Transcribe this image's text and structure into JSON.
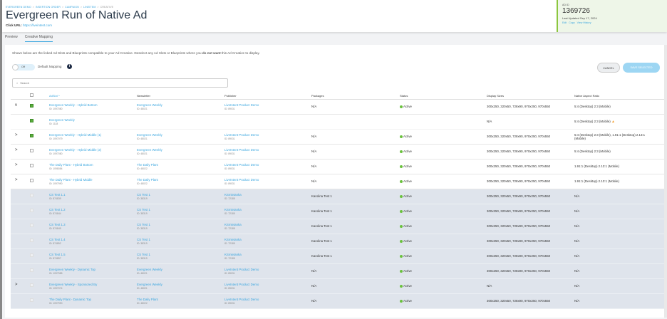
{
  "breadcrumbs": [
    "EVERGREEN DEMO",
    "INSERTION ORDER",
    "CAMPAIGN",
    "LINEITEM",
    "CREATIVE"
  ],
  "title": "Evergreen Run of Native Ad",
  "click_url_label": "Click URL:",
  "click_url": "https://liveintent.com",
  "ad_id_label": "AD ID",
  "ad_id": "1369726",
  "last_updated": "Last Updated Sep 17, 2024",
  "id_links": [
    "Edit",
    "Copy",
    "View History"
  ],
  "tabs": [
    {
      "label": "Preview",
      "active": false
    },
    {
      "label": "Creative Mapping",
      "active": true
    }
  ],
  "intro_pre": "Shown below are the linked Ad Slots and Blueprints compatible to your Ad Creative. Deselect any Ad Slots or Blueprints where you ",
  "intro_bold": "do not want",
  "intro_post": " this Ad Creative to display.",
  "toggle": {
    "label": "Off",
    "on": false
  },
  "default_mapping_label": "Default Mapping",
  "cancel_label": "CANCEL",
  "save_label": "SAVE SELECTED",
  "search_placeholder": "Search",
  "columns": [
    "AdSlot",
    "Newsletter",
    "Publisher",
    "Packages",
    "Status",
    "Display Sizes",
    "Native Aspect Ratio"
  ],
  "sort_indicator": "^",
  "colors": {
    "accent": "#3aa6df",
    "active": "#6ac13d",
    "checked": "#5aad3c",
    "id_panel": "#eef6e8"
  },
  "rows": [
    {
      "chev": "v",
      "checked": true,
      "grey": false,
      "sub": false,
      "adslot": "Evergreen Weekly - Hybrid Bottom",
      "adslot_id": "ID: 1097080",
      "newsletter": "Evergreen Weekly",
      "newsletter_id": "ID: 48021",
      "publisher": "LiveIntent Product Demo",
      "publisher_id": "ID: 89031",
      "packages": "N/A",
      "status": "Active",
      "sizes": "300x250, 320x50, 728x90, 970x250, 970x550",
      "ratio": "5:4 (Desktop) 2:3 (Mobile)",
      "warn": false
    },
    {
      "chev": "",
      "checked": true,
      "grey": false,
      "sub": true,
      "adslot": "Evergreen Weekly",
      "adslot_id": "ID: 1118",
      "newsletter": "",
      "newsletter_id": "",
      "publisher": "",
      "publisher_id": "",
      "packages": "",
      "status": "",
      "sizes": "N/A",
      "ratio": "5:4 (Desktop) 2:3 (Mobile)",
      "warn": true
    },
    {
      "chev": ">",
      "checked": true,
      "grey": false,
      "sub": false,
      "adslot": "Evergreen Weekly - Hybrid Middle (1)",
      "adslot_id": "ID: 1097079",
      "newsletter": "Evergreen Weekly",
      "newsletter_id": "ID: 48021",
      "publisher": "LiveIntent Product Demo",
      "publisher_id": "ID: 89031",
      "packages": "N/A",
      "status": "Active",
      "sizes": "300x250, 320x50, 728x90, 970x250, 970x550",
      "ratio": "5:4 (Desktop) 2:3 (Mobile), 1.91:1 (Desktop) 2.13:1 (Mobile)",
      "warn": false
    },
    {
      "chev": ">",
      "checked": false,
      "grey": false,
      "sub": false,
      "adslot": "Evergreen Weekly - Hybrid Middle (2)",
      "adslot_id": "ID: 1097080",
      "newsletter": "Evergreen Weekly",
      "newsletter_id": "ID: 48021",
      "publisher": "LiveIntent Product Demo",
      "publisher_id": "ID: 89031",
      "packages": "N/A",
      "status": "Active",
      "sizes": "300x250, 320x50, 728x90, 970x250, 970x550",
      "ratio": "5:4 (Desktop) 2:3 (Mobile)",
      "warn": false
    },
    {
      "chev": ">",
      "checked": false,
      "grey": false,
      "sub": false,
      "adslot": "The Daily Plant - Hybrid Bottom",
      "adslot_id": "ID: 1098084",
      "newsletter": "The Daily Plant",
      "newsletter_id": "ID: 48022",
      "publisher": "LiveIntent Product Demo",
      "publisher_id": "ID: 89031",
      "packages": "N/A",
      "status": "Active",
      "sizes": "300x250, 320x50, 728x90, 970x250, 970x550",
      "ratio": "1.91:1 (Desktop) 2.13:1 (Mobile)",
      "warn": false
    },
    {
      "chev": ">",
      "checked": false,
      "grey": false,
      "sub": false,
      "adslot": "The Daily Plant - Hybrid Middle",
      "adslot_id": "ID: 1097990",
      "newsletter": "The Daily Plant",
      "newsletter_id": "ID: 48022",
      "publisher": "LiveIntent Product Demo",
      "publisher_id": "ID: 89031",
      "packages": "N/A",
      "status": "Active",
      "sizes": "300x250, 320x50, 728x90, 970x250, 970x550",
      "ratio": "1.91:1 (Desktop) 2.13:1 (Mobile)",
      "warn": false
    },
    {
      "chev": "",
      "checked": false,
      "grey": true,
      "sub": false,
      "adslot": "CS Test 1.1",
      "adslot_id": "ID: 874839",
      "newsletter": "CS Test 1",
      "newsletter_id": "ID: 38319",
      "publisher": "KSmietanka",
      "publisher_id": "ID: 72185",
      "packages": "Karolina Test 1",
      "status": "Active",
      "sizes": "300x250, 320x50, 728x90, 970x250, 970x550",
      "ratio": "N/A",
      "warn": false
    },
    {
      "chev": "",
      "checked": false,
      "grey": true,
      "sub": false,
      "adslot": "CS Test 1.2",
      "adslot_id": "ID: 874844",
      "newsletter": "CS Test 1",
      "newsletter_id": "ID: 38319",
      "publisher": "KSmietanka",
      "publisher_id": "ID: 72185",
      "packages": "Karolina Test 1",
      "status": "Active",
      "sizes": "300x250, 320x50, 728x90, 970x250, 970x550",
      "ratio": "N/A",
      "warn": false
    },
    {
      "chev": "",
      "checked": false,
      "grey": true,
      "sub": false,
      "adslot": "CS Test 1.3",
      "adslot_id": "ID: 874849",
      "newsletter": "CS Test 1",
      "newsletter_id": "ID: 38319",
      "publisher": "KSmietanka",
      "publisher_id": "ID: 72185",
      "packages": "Karolina Test 1",
      "status": "Active",
      "sizes": "300x250, 320x50, 728x90, 970x250, 970x550",
      "ratio": "N/A",
      "warn": false
    },
    {
      "chev": "",
      "checked": false,
      "grey": true,
      "sub": false,
      "adslot": "CS Test 1.4",
      "adslot_id": "ID: 874852",
      "newsletter": "CS Test 1",
      "newsletter_id": "ID: 38319",
      "publisher": "KSmietanka",
      "publisher_id": "ID: 72185",
      "packages": "Karolina Test 1",
      "status": "Active",
      "sizes": "300x250, 320x50, 728x90, 970x250, 970x550",
      "ratio": "N/A",
      "warn": false
    },
    {
      "chev": "",
      "checked": false,
      "grey": true,
      "sub": false,
      "adslot": "CS Test 1.5",
      "adslot_id": "ID: 874857",
      "newsletter": "CS Test 1",
      "newsletter_id": "ID: 38319",
      "publisher": "KSmietanka",
      "publisher_id": "ID: 72185",
      "packages": "Karolina Test 1",
      "status": "Active",
      "sizes": "300x250, 320x50, 728x90, 970x250, 970x550",
      "ratio": "N/A",
      "warn": false
    },
    {
      "chev": "",
      "checked": false,
      "grey": true,
      "sub": false,
      "adslot": "Evergreen Weekly - Dynamic Top",
      "adslot_id": "ID: 1097985",
      "newsletter": "Evergreen Weekly",
      "newsletter_id": "ID: 48021",
      "publisher": "LiveIntent Product Demo",
      "publisher_id": "ID: 89031",
      "packages": "N/A",
      "status": "Active",
      "sizes": "300x250, 320x50, 728x90, 970x250, 970x550",
      "ratio": "N/A",
      "warn": false
    },
    {
      "chev": ">",
      "checked": false,
      "grey": true,
      "sub": false,
      "adslot": "Evergreen Weekly - Sponsored By",
      "adslot_id": "ID: 1097074",
      "newsletter": "Evergreen Weekly",
      "newsletter_id": "ID: 48021",
      "publisher": "LiveIntent Product Demo",
      "publisher_id": "ID: 89031",
      "packages": "N/A",
      "status": "Active",
      "sizes": "N/A",
      "ratio": "N/A",
      "warn": false
    },
    {
      "chev": "",
      "checked": false,
      "grey": true,
      "sub": false,
      "adslot": "The Daily Plant - Dynamic Top",
      "adslot_id": "ID: 1097990",
      "newsletter": "The Daily Plant",
      "newsletter_id": "ID: 48022",
      "publisher": "LiveIntent Product Demo",
      "publisher_id": "ID: 89031",
      "packages": "N/A",
      "status": "Active",
      "sizes": "300x250, 320x50, 728x90, 970x250, 970x550",
      "ratio": "N/A",
      "warn": false
    }
  ]
}
